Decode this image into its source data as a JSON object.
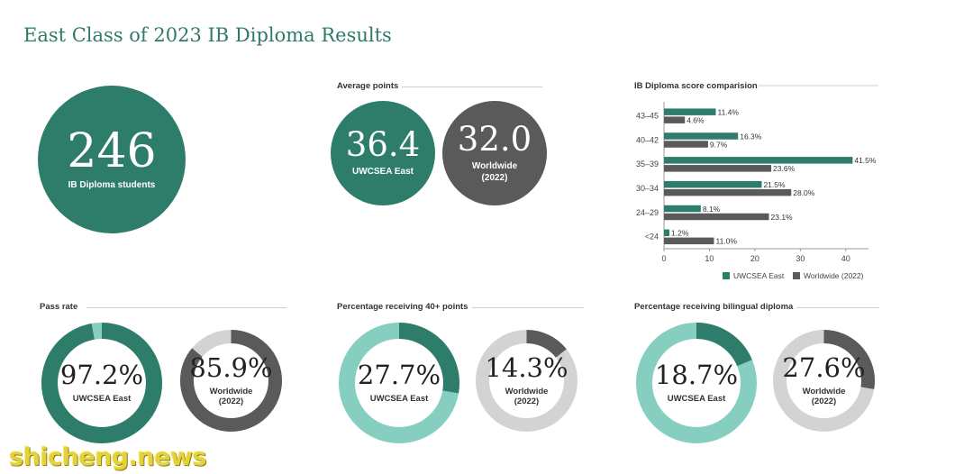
{
  "page_title": "East Class of 2023 IB Diploma Results",
  "students": {
    "value": "246",
    "label": "IB Diploma students",
    "color": "#2e7d6b"
  },
  "average_points": {
    "title": "Average points",
    "east": {
      "value": "36.4",
      "label": "UWCSEA East",
      "color": "#2e7d6b"
    },
    "world": {
      "value": "32.0",
      "label": "Worldwide",
      "sublabel": "(2022)",
      "color": "#5a5a5a"
    }
  },
  "pass_rate": {
    "title": "Pass rate",
    "east": {
      "value": "97.2%",
      "label": "UWCSEA East",
      "percent": 97.2
    },
    "world": {
      "value": "85.9%",
      "label": "Worldwide",
      "sublabel": "(2022)",
      "percent": 85.9
    }
  },
  "forty_plus": {
    "title": "Percentage receiving 40+ points",
    "east": {
      "value": "27.7%",
      "label": "UWCSEA East",
      "percent": 27.7
    },
    "world": {
      "value": "14.3%",
      "label": "Worldwide",
      "sublabel": "(2022)",
      "percent": 14.3
    }
  },
  "bilingual": {
    "title": "Percentage receiving bilingual diploma",
    "east": {
      "value": "18.7%",
      "label": "UWCSEA East",
      "percent": 18.7
    },
    "world": {
      "value": "27.6%",
      "label": "Worldwide",
      "sublabel": "(2022)",
      "percent": 27.6
    }
  },
  "colors": {
    "east": "#2e7d6b",
    "east_light": "#86cfc0",
    "world": "#5a5a5a",
    "world_light": "#d3d3d3"
  },
  "chart_data": {
    "type": "bar",
    "orientation": "horizontal",
    "title": "IB Diploma score comparision",
    "categories": [
      "43–45",
      "40–42",
      "35–39",
      "30–34",
      "24–29",
      "<24"
    ],
    "series": [
      {
        "name": "UWCSEA East",
        "values": [
          11.4,
          16.3,
          41.5,
          21.5,
          8.1,
          1.2
        ],
        "labels": [
          "11.4%",
          "16.3%",
          "41.5%",
          "21.5%",
          "8.1%",
          "1.2%"
        ],
        "color": "#2e7d6b"
      },
      {
        "name": "Worldwide (2022)",
        "values": [
          4.6,
          9.7,
          23.6,
          28.0,
          23.1,
          11.0
        ],
        "labels": [
          "4.6%",
          "9.7%",
          "23.6%",
          "28.0%",
          "23.1%",
          "11.0%"
        ],
        "color": "#5a5a5a"
      }
    ],
    "xlim": [
      0,
      45
    ],
    "xticks": [
      "0",
      "10",
      "20",
      "30",
      "40"
    ],
    "grid": false,
    "legend": "bottom"
  },
  "watermark": "shicheng.news"
}
